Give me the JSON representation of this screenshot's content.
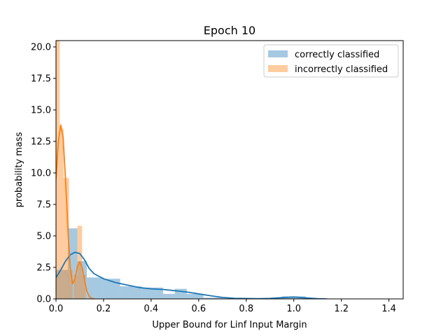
{
  "chart_data": {
    "type": "bar",
    "title": "Epoch  10",
    "xlabel": "Upper Bound for Linf Input Margin",
    "ylabel": "probability mass",
    "xlim": [
      0,
      1.46
    ],
    "ylim": [
      0,
      20.5
    ],
    "xticks": [
      0.0,
      0.2,
      0.4,
      0.6,
      0.8,
      1.0,
      1.2,
      1.4
    ],
    "xtick_labels": [
      "0.0",
      "0.2",
      "0.4",
      "0.6",
      "0.8",
      "1.0",
      "1.2",
      "1.4"
    ],
    "yticks": [
      0.0,
      2.5,
      5.0,
      7.5,
      10.0,
      12.5,
      15.0,
      17.5,
      20.0
    ],
    "ytick_labels": [
      "0.0",
      "2.5",
      "5.0",
      "7.5",
      "10.0",
      "12.5",
      "15.0",
      "17.5",
      "20.0"
    ],
    "legend_position": "top-right",
    "series": [
      {
        "name": "correctly classified",
        "color": "#1f77b4",
        "bins": [
          {
            "x0": 0.0,
            "x1": 0.05,
            "value": 2.3
          },
          {
            "x0": 0.05,
            "x1": 0.09,
            "value": 5.6
          },
          {
            "x0": 0.09,
            "x1": 0.13,
            "value": 3.0
          },
          {
            "x0": 0.13,
            "x1": 0.2,
            "value": 1.7
          },
          {
            "x0": 0.2,
            "x1": 0.27,
            "value": 1.6
          },
          {
            "x0": 0.27,
            "x1": 0.36,
            "value": 1.0
          },
          {
            "x0": 0.36,
            "x1": 0.45,
            "value": 0.9
          },
          {
            "x0": 0.45,
            "x1": 0.5,
            "value": 0.4
          },
          {
            "x0": 0.5,
            "x1": 0.55,
            "value": 0.8
          },
          {
            "x0": 0.55,
            "x1": 0.62,
            "value": 0.4
          },
          {
            "x0": 0.62,
            "x1": 0.7,
            "value": 0.1
          },
          {
            "x0": 0.7,
            "x1": 0.95,
            "value": 0.05
          },
          {
            "x0": 0.95,
            "x1": 1.05,
            "value": 0.2
          }
        ],
        "kde_x": [
          0.0,
          0.02,
          0.04,
          0.06,
          0.08,
          0.1,
          0.12,
          0.14,
          0.16,
          0.2,
          0.25,
          0.3,
          0.35,
          0.4,
          0.45,
          0.5,
          0.55,
          0.6,
          0.65,
          0.7,
          0.75,
          0.8,
          0.85,
          0.9,
          0.95,
          1.0,
          1.05,
          1.1,
          1.14
        ],
        "kde_y": [
          1.7,
          2.3,
          3.0,
          3.5,
          3.7,
          3.6,
          3.1,
          2.4,
          2.0,
          1.6,
          1.3,
          1.1,
          0.9,
          0.8,
          0.75,
          0.65,
          0.55,
          0.4,
          0.25,
          0.12,
          0.05,
          0.03,
          0.02,
          0.04,
          0.1,
          0.15,
          0.08,
          0.02,
          0.0
        ]
      },
      {
        "name": "incorrectly classified",
        "color": "#ff7f0e",
        "bins": [
          {
            "x0": 0.0,
            "x1": 0.016,
            "value": 20.5
          },
          {
            "x0": 0.016,
            "x1": 0.032,
            "value": 13.5
          },
          {
            "x0": 0.032,
            "x1": 0.055,
            "value": 9.6
          },
          {
            "x0": 0.055,
            "x1": 0.07,
            "value": 2.3
          },
          {
            "x0": 0.075,
            "x1": 0.09,
            "value": 1.9
          },
          {
            "x0": 0.09,
            "x1": 0.11,
            "value": 5.8
          },
          {
            "x0": 0.11,
            "x1": 0.125,
            "value": 1.9
          }
        ],
        "kde_x": [
          0.0,
          0.01,
          0.02,
          0.03,
          0.04,
          0.05,
          0.06,
          0.07,
          0.08,
          0.09,
          0.1,
          0.11,
          0.12,
          0.13,
          0.14,
          0.15,
          0.16
        ],
        "kde_y": [
          9.5,
          12.5,
          13.8,
          12.8,
          9.5,
          5.5,
          2.5,
          1.2,
          1.6,
          2.6,
          2.9,
          2.5,
          1.5,
          0.6,
          0.2,
          0.05,
          0.0
        ]
      }
    ]
  }
}
